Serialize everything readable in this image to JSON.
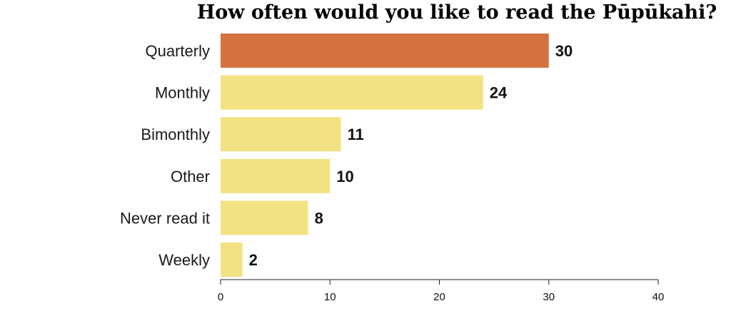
{
  "chart_data": {
    "type": "bar",
    "orientation": "horizontal",
    "title": "How often would you like to read the Pūpūkahi?",
    "xlabel": "",
    "ylabel": "",
    "categories": [
      "Quarterly",
      "Monthly",
      "Bimonthly",
      "Other",
      "Never read it",
      "Weekly"
    ],
    "values": [
      30,
      24,
      11,
      10,
      8,
      2
    ],
    "highlight_index": 0,
    "xlim": [
      0,
      40
    ],
    "xticks": [
      0,
      10,
      20,
      30,
      40
    ],
    "grid": false,
    "legend": "none",
    "colors": {
      "highlight": "#d67240",
      "bar": "#f3e283",
      "axis": "#222222"
    }
  }
}
